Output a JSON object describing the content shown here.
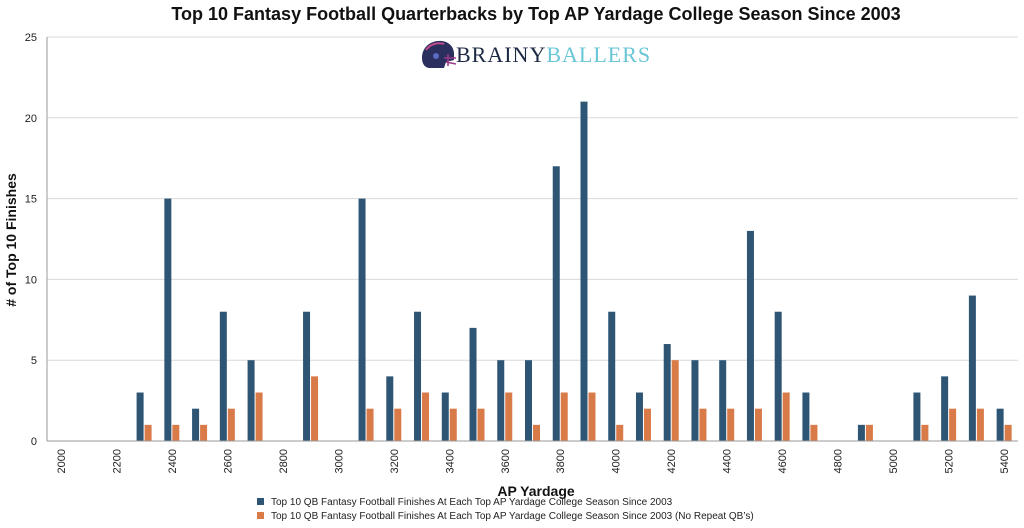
{
  "chart_data": {
    "type": "bar",
    "title": "Top 10 Fantasy Football Quarterbacks by Top AP Yardage College Season Since 2003",
    "xlabel": "AP Yardage",
    "ylabel": "# of Top 10 Finishes",
    "ylim": [
      0,
      25
    ],
    "yticks": [
      0,
      5,
      10,
      15,
      20,
      25
    ],
    "grid": "horizontal",
    "legend_position": "bottom",
    "categories": [
      "2000",
      "2100",
      "2200",
      "2300",
      "2400",
      "2500",
      "2600",
      "2700",
      "2800",
      "2900",
      "3000",
      "3100",
      "3200",
      "3300",
      "3400",
      "3500",
      "3600",
      "3700",
      "3800",
      "3900",
      "4000",
      "4100",
      "4200",
      "4300",
      "4400",
      "4500",
      "4600",
      "4700",
      "4800",
      "4900",
      "5000",
      "5100",
      "5200",
      "5300",
      "5400"
    ],
    "xtick_labels": [
      "2000",
      "2200",
      "2400",
      "2600",
      "2800",
      "3000",
      "3200",
      "3400",
      "3600",
      "3800",
      "4000",
      "4200",
      "4400",
      "4600",
      "4800",
      "5000",
      "5200",
      "5400"
    ],
    "series": [
      {
        "name": "Top 10 QB Fantasy Football Finishes At Each Top AP Yardage College Season Since 2003",
        "color": "#2f5574",
        "values": [
          0,
          0,
          0,
          3,
          15,
          2,
          8,
          5,
          0,
          8,
          0,
          15,
          4,
          8,
          3,
          7,
          5,
          5,
          17,
          21,
          8,
          3,
          6,
          5,
          5,
          13,
          8,
          3,
          0,
          1,
          0,
          3,
          4,
          9,
          2
        ]
      },
      {
        "name": "Top 10 QB Fantasy Football Finishes At Each Top AP Yardage College Season Since 2003 (No Repeat QB’s)",
        "color": "#d97a49",
        "values": [
          0,
          0,
          0,
          1,
          1,
          1,
          2,
          3,
          0,
          4,
          0,
          2,
          2,
          3,
          2,
          2,
          3,
          1,
          3,
          3,
          1,
          2,
          5,
          2,
          2,
          2,
          3,
          1,
          0,
          1,
          0,
          1,
          2,
          2,
          1
        ]
      }
    ]
  },
  "logo": {
    "part1": "BRAINY",
    "part2": "BALLERS",
    "part1_color": "#1e2a44",
    "part2_color": "#69c6d6",
    "icon": "football-helmet-icon"
  }
}
